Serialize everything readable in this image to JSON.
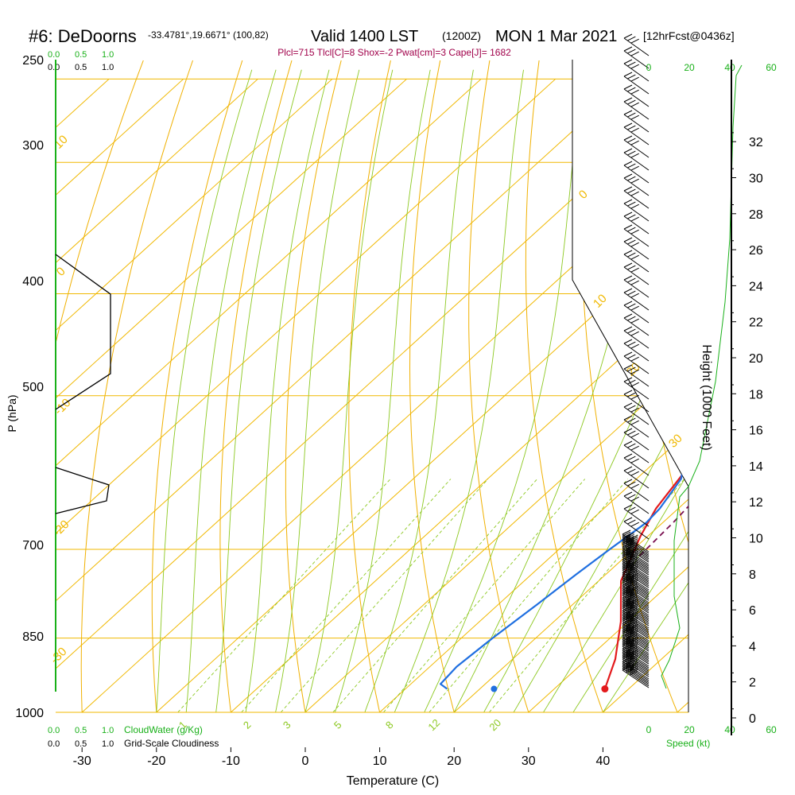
{
  "header": {
    "station": "#6: DeDoorns",
    "coords": "-33.4781°,19.6671° (100,82)",
    "valid": "Valid 1400 LST",
    "zulu": "(1200Z)",
    "date": "MON 1 Mar 2021",
    "forecast": "[12hrFcst@0436z]",
    "indices": "Plcl=715 Tlcl[C]=8 Shox=-2 Pwat[cm]=3 Cape[J]= 1682"
  },
  "colors": {
    "temperature": "#e31a1c",
    "dewpoint": "#1f6fe0",
    "parcel": "#7a1050",
    "isobar": "#f0b800",
    "dry_adiabat": "#f0b000",
    "moist_adiabat": "#8cc820",
    "mixing_ratio": "#8cc820",
    "green_text": "#19b019",
    "indices_text": "#a0004a",
    "isotherm_label": "#f0b800"
  },
  "chart_data": {
    "type": "line",
    "title": "Valid 1400 LST (1200Z) MON 1 Mar 2021",
    "xlabel": "Temperature (C)",
    "ylabel": "P (hPa)",
    "right_label": "Height (1000 Feet)",
    "x_ticks": [
      "-30",
      "-20",
      "-10",
      "0",
      "10",
      "20",
      "30",
      "40"
    ],
    "y_ticks": [
      "250",
      "300",
      "400",
      "500",
      "700",
      "850",
      "1000"
    ],
    "height_ticks": [
      "0",
      "2",
      "4",
      "6",
      "8",
      "10",
      "12",
      "14",
      "16",
      "18",
      "20",
      "22",
      "24",
      "26",
      "28",
      "30",
      "32"
    ],
    "isotherm_labels": [
      "0",
      "10",
      "20",
      "30",
      "10",
      "0",
      "-10",
      "-20",
      "-30"
    ],
    "mixing_ratio_labels": [
      "1",
      "2",
      "3",
      "5",
      "8",
      "12",
      "20"
    ],
    "cloud_scale_top_green": [
      "0.0",
      "0.5",
      "1.0"
    ],
    "cloud_scale_top_black": [
      "0.0",
      "0.5",
      "1.0"
    ],
    "cloud_scale_bottom_green": [
      "0.0",
      "0.5",
      "1.0"
    ],
    "cloud_scale_bottom_black": [
      "0.0",
      "0.5",
      "1.0"
    ],
    "cloudwater_label": "CloudWater (g/Kg)",
    "cloudiness_label": "Grid-Scale Cloudiness",
    "speed_ticks_black": [
      "0",
      "20",
      "40"
    ],
    "speed_ticks_green": [
      "20",
      "40",
      "60"
    ],
    "speed_label": "Speed (kt)",
    "series": [
      {
        "name": "Temperature",
        "points": [
          [
            36.8,
            950
          ],
          [
            33.8,
            890
          ],
          [
            29,
            820
          ],
          [
            23,
            750
          ],
          [
            19,
            680
          ],
          [
            17,
            640
          ],
          [
            15.4,
            590
          ],
          [
            12.6,
            530
          ],
          [
            9.8,
            480
          ],
          [
            7.6,
            440
          ],
          [
            4.7,
            380
          ],
          [
            1.7,
            330
          ],
          [
            0.6,
            300
          ],
          [
            0.5,
            270
          ],
          [
            1.4,
            255
          ]
        ]
      },
      {
        "name": "Dewpoint",
        "points": [
          [
            15.6,
            950
          ],
          [
            14,
            940
          ],
          [
            13.6,
            905
          ],
          [
            14.2,
            850
          ],
          [
            15.2,
            790
          ],
          [
            16,
            740
          ],
          [
            16.8,
            700
          ],
          [
            17.8,
            660
          ],
          [
            17.5,
            640
          ],
          [
            16,
            600
          ],
          [
            12.2,
            560
          ],
          [
            10.7,
            525
          ],
          [
            10.6,
            490
          ],
          [
            9.6,
            450
          ],
          [
            6.6,
            410
          ],
          [
            2.4,
            370
          ],
          [
            -3,
            350
          ],
          [
            -6.5,
            330
          ],
          [
            -8.8,
            300
          ],
          [
            -13.5,
            270
          ],
          [
            -15.4,
            255
          ]
        ]
      },
      {
        "name": "Parcel",
        "points": [
          [
            21.8,
            710
          ],
          [
            21.4,
            660
          ],
          [
            20.6,
            610
          ],
          [
            19.6,
            570
          ],
          [
            17.8,
            510
          ],
          [
            15.8,
            470
          ],
          [
            13.2,
            420
          ],
          [
            9.9,
            380
          ],
          [
            6.8,
            340
          ],
          [
            3.6,
            310
          ],
          [
            0.6,
            285
          ],
          [
            -2.8,
            264
          ],
          [
            -4.5,
            255
          ]
        ]
      }
    ],
    "surface_temperature": 36.8,
    "surface_dewpoint": 21.9,
    "surface_pressure": 950,
    "xlim": [
      -35,
      45
    ],
    "ylim": [
      1000,
      250
    ]
  }
}
